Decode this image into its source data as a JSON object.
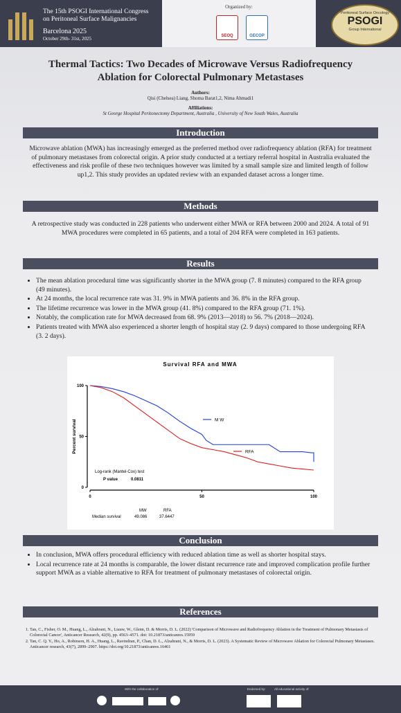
{
  "header": {
    "congress": "The 15th PSOGI International Congress",
    "congress_sub": "on Peritoneal Surface Malignancies",
    "city": "Barcelona 2025",
    "dates": "October 29th- 31st, 2025",
    "organized_by": "Organized by:",
    "org_logos": [
      "SEOQ",
      "GECOP"
    ],
    "psogi": "PSOGI",
    "psogi_top": "Peritoneal Surface Oncology",
    "psogi_bottom": "Group International"
  },
  "title": "Thermal Tactics: Two Decades of Microwave Versus Radiofrequency Ablation for Colorectal Pulmonary Metastases",
  "authors_heading": "Authors:",
  "authors": "Qisi (Chelsea) Liang, Shoma Barat1,2, Nima Ahmadi1",
  "affiliations_heading": "Affiliations:",
  "affiliations": "St George Hospital Peritonectomy Department, Australia , University of New South Wales, Australia",
  "introduction": {
    "heading": "Introduction",
    "text": "Microwave ablation (MWA) has increasingly emerged as the preferred method over radiofrequency ablation (RFA) for treatment of pulmonary metastases from colorectal origin. A prior study conducted at a tertiary referral hospital in Australia evaluated the effectiveness and risk profile of these two techniques however was limited by a small sample size and limited length of follow up1,2. This study provides an updated review with an expanded dataset across a longer time."
  },
  "methods": {
    "heading": "Methods",
    "text": "A retrospective study was conducted in 228 patients who underwent either MWA or RFA between 2000 and 2024. A total of 91 MWA procedures were completed in 65 patients, and a total of 204 RFA were completed in 163 patients."
  },
  "results": {
    "heading": "Results",
    "bullets": [
      "The mean ablation procedural time was significantly shorter in the MWA group (7. 8 minutes) compared to the RFA group (49 minutes).",
      "At 24 months, the local recurrence rate was 31. 9% in MWA patients and 36. 8% in the RFA group.",
      "The lifetime recurrence was lower in the MWA group (41. 8%) compared to the RFA group (71. 1%).",
      "Notably, the complication rate for MWA decreased from 68. 9% (2013—2018) to 56. 7% (2018—2024).",
      "Patients treated with MWA also experienced a shorter length of hospital stay (2. 9 days) compared to those undergoing RFA (3. 2 days)."
    ]
  },
  "chart_data": {
    "type": "line",
    "title": "Survival RFA and MWA",
    "y_label": "Percent survival",
    "xlim": [
      0,
      100
    ],
    "xticks": [
      0,
      50,
      100
    ],
    "ylim": [
      0,
      100
    ],
    "yticks": [
      0,
      50,
      100
    ],
    "series": [
      {
        "name": "M W",
        "color": "#1f3fd6",
        "x": [
          0,
          5,
          10,
          15,
          20,
          25,
          30,
          35,
          40,
          45,
          50,
          52,
          55,
          60,
          70,
          80,
          85,
          90,
          95,
          99,
          100,
          100
        ],
        "values": [
          100,
          99,
          97,
          94,
          90,
          85,
          80,
          73,
          65,
          58,
          52,
          46,
          42,
          42,
          42,
          42,
          35,
          35,
          35,
          34,
          34,
          25
        ]
      },
      {
        "name": "RFA",
        "color": "#e01b1b",
        "x": [
          0,
          5,
          10,
          15,
          20,
          25,
          30,
          35,
          40,
          45,
          50,
          55,
          60,
          65,
          70,
          75,
          80,
          85,
          90,
          95,
          100
        ],
        "values": [
          100,
          98,
          94,
          88,
          80,
          72,
          64,
          56,
          48,
          43,
          39,
          37,
          35,
          32,
          29,
          25,
          23,
          21,
          19,
          18,
          17
        ]
      }
    ],
    "annotations": [
      "Log-rank (Mantel-Cox) test",
      "P value",
      "0.0811"
    ],
    "median_table": {
      "columns": [
        "MW",
        "RFA"
      ],
      "row_label": "Median survival",
      "values": [
        "49.086",
        "37.6447"
      ]
    }
  },
  "conclusion": {
    "heading": "Conclusion",
    "bullets": [
      "In conclusion, MWA offers procedural efficiency with reduced ablation time as well as shorter hospital stays.",
      "Local recurrence rate at 24 months is comparable, the lower distant recurrence rate and improved complication profile further support MWA as a viable alternative to RFA for treatment of pulmonary metastases of colorectal origin."
    ]
  },
  "references": {
    "heading": "References",
    "items": [
      "Tan, C., Fisher, O. M., Huang, L., Alzahrani, N., Liauw, W., Glenn, D. & Morris, D. L. (2022) 'Comparison of Microwave and Radiofrequency Ablation in the Treatment of Pulmonary Metastasis of Colorectal Cancer', Anticancer Research, 42(9), pp. 4563–4571. doi: 10.21873/anticanres.15959",
      "Tan, C. Q. Y., Ho, A., Robinson, H. A., Huang, L., Ravindran, P., Chan, D. L., Alzahrani, N., & Morris, D. L. (2023). A Systematic Review of Microwave Ablation for Colorectal Pulmonary Metastases. Anticancer research, 43(7), 2899–2907. https://doi.org/10.21873/anticanres.16461"
    ]
  },
  "footer": {
    "collab": "With the collaboration of:",
    "endorsed": "Endorsed by:",
    "educational": "All educational activity of:"
  }
}
